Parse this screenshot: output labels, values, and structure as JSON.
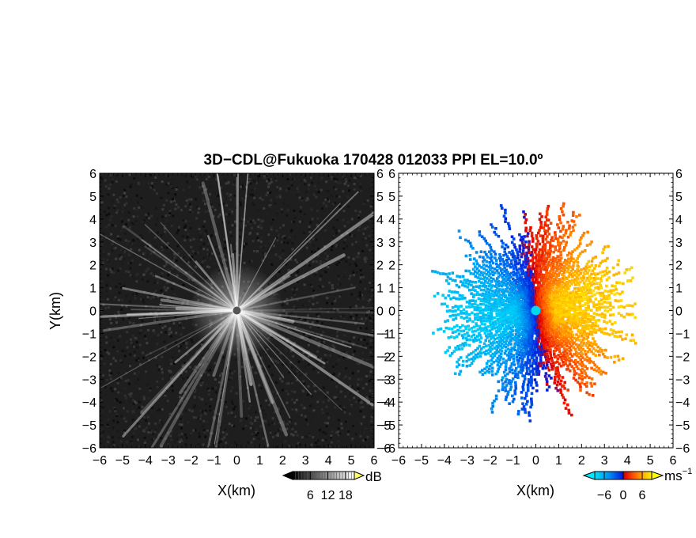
{
  "figure": {
    "title": "3D−CDL@Fukuoka 170428 012033 PPI EL=10.0º"
  },
  "colors": {
    "background": "#ffffff",
    "echo_dark": "#1e1e1e",
    "echo_bright": "#f0f0f0",
    "velocity_cold": "#00d0f0",
    "velocity_blue": "#0030e8",
    "velocity_red": "#e01000",
    "velocity_orange": "#ff8000",
    "velocity_yellow": "#ffee00"
  },
  "chart_data": [
    {
      "type": "heatmap",
      "panel": "left",
      "description_fields": "PPI intensity",
      "xlabel": "X(km)",
      "ylabel": "Y(km)",
      "xlim": [
        -6,
        6
      ],
      "ylim": [
        -6,
        6
      ],
      "xticks": [
        "−6",
        "−5",
        "−4",
        "−3",
        "−2",
        "−1",
        "0",
        "1",
        "2",
        "3",
        "4",
        "5",
        "6"
      ],
      "yticks": [
        "6",
        "5",
        "4",
        "3",
        "2",
        "1",
        "0",
        "−1",
        "−2",
        "−3",
        "−4",
        "−5",
        "−6"
      ],
      "colorbar": {
        "unit": "dB",
        "ticks": [
          "6",
          "12",
          "18"
        ],
        "range": [
          0,
          21
        ],
        "extend": "both",
        "colormap": "gray"
      }
    },
    {
      "type": "heatmap",
      "panel": "right",
      "description_fields": "PPI Doppler velocity",
      "xlabel": "X(km)",
      "ylabel": "",
      "xlim": [
        -6,
        6
      ],
      "ylim": [
        -6,
        6
      ],
      "xticks": [
        "−6",
        "−5",
        "−4",
        "−3",
        "−2",
        "−1",
        "0",
        "1",
        "2",
        "3",
        "4",
        "5",
        "6"
      ],
      "yticks": [
        "6",
        "5",
        "4",
        "3",
        "2",
        "1",
        "0",
        "−1",
        "−2",
        "−3",
        "−4",
        "−5",
        "−6"
      ],
      "max_range_km": 4.9,
      "colorbar": {
        "unit": "ms",
        "unit_exponent": "−1",
        "ticks": [
          "−6",
          "0",
          "6"
        ],
        "range": [
          -9,
          9
        ],
        "extend": "both",
        "colormap": "cyan-blue-red-orange-yellow"
      }
    }
  ]
}
